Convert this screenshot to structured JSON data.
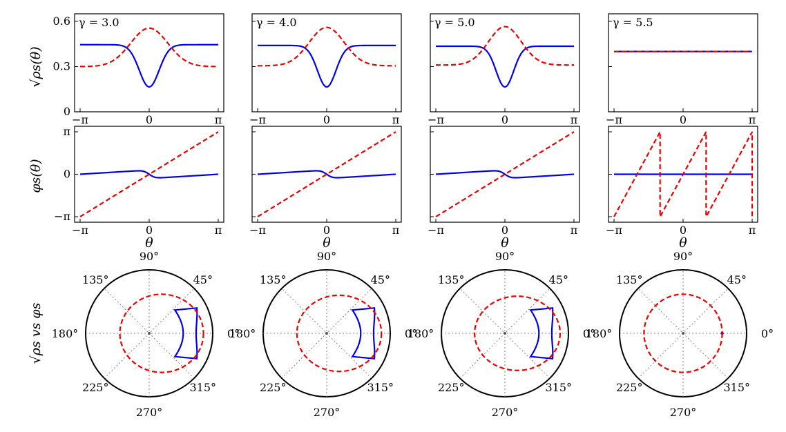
{
  "figure": {
    "row_labels": {
      "amplitude": "√ρs(θ)",
      "phase": "φs(θ)",
      "polar": "√ρs vs φs"
    },
    "x_axis_label": "θ",
    "theta_tick_labels": [
      "−π",
      "0",
      "π"
    ],
    "amplitude_tick_labels": [
      "0",
      "0.3",
      "0.6"
    ],
    "phase_tick_labels": [
      "−π",
      "0",
      "π"
    ],
    "polar_angle_labels": [
      "0°",
      "45°",
      "90°",
      "135°",
      "180°",
      "225°",
      "270°",
      "315°"
    ],
    "colors": {
      "solid": "#0000ee",
      "dashed": "#ee0000",
      "grid": "#808080"
    }
  },
  "chart_data": [
    {
      "type": "line",
      "title": "γ = 3.0",
      "xlabel": "θ",
      "ylabel": "√ρs(θ)",
      "xlim": [
        "-π",
        "π"
      ],
      "ylim": [
        0,
        0.65
      ],
      "series": [
        {
          "name": "solid blue",
          "style": "solid",
          "profile": "dip",
          "baseline": 0.445,
          "extremum": 0.165,
          "width": 0.45
        },
        {
          "name": "dashed red",
          "style": "dashed",
          "profile": "bump",
          "baseline": 0.3,
          "extremum": 0.555,
          "width": 0.85
        }
      ]
    },
    {
      "type": "line",
      "title": "γ = 4.0",
      "xlabel": "θ",
      "ylabel": "√ρs(θ)",
      "xlim": [
        "-π",
        "π"
      ],
      "ylim": [
        0,
        0.65
      ],
      "series": [
        {
          "name": "solid blue",
          "style": "solid",
          "profile": "dip",
          "baseline": 0.44,
          "extremum": 0.165,
          "width": 0.42
        },
        {
          "name": "dashed red",
          "style": "dashed",
          "profile": "bump",
          "baseline": 0.305,
          "extremum": 0.56,
          "width": 0.8
        }
      ]
    },
    {
      "type": "line",
      "title": "γ = 5.0",
      "xlabel": "θ",
      "ylabel": "√ρs(θ)",
      "xlim": [
        "-π",
        "π"
      ],
      "ylim": [
        0,
        0.65
      ],
      "series": [
        {
          "name": "solid blue",
          "style": "solid",
          "profile": "dip",
          "baseline": 0.435,
          "extremum": 0.165,
          "width": 0.4
        },
        {
          "name": "dashed red",
          "style": "dashed",
          "profile": "bump",
          "baseline": 0.31,
          "extremum": 0.565,
          "width": 0.75
        }
      ]
    },
    {
      "type": "line",
      "title": "γ = 5.5",
      "xlabel": "θ",
      "ylabel": "√ρs(θ)",
      "xlim": [
        "-π",
        "π"
      ],
      "ylim": [
        0,
        0.65
      ],
      "series": [
        {
          "name": "solid blue",
          "style": "solid",
          "profile": "flat",
          "baseline": 0.4,
          "extremum": 0.4,
          "width": 1
        },
        {
          "name": "dashed red",
          "style": "dashed",
          "profile": "flat",
          "baseline": 0.4,
          "extremum": 0.4,
          "width": 1
        }
      ]
    },
    {
      "type": "line",
      "title": "",
      "xlabel": "θ",
      "ylabel": "φs(θ)",
      "xlim": [
        "-π",
        "π"
      ],
      "ylim": [
        "-π",
        "π"
      ],
      "series": [
        {
          "name": "solid blue",
          "style": "solid",
          "profile": "kink",
          "peak": 0.28,
          "sharpness": 0.25
        },
        {
          "name": "dashed red",
          "style": "dashed",
          "profile": "linear",
          "slope": 1
        }
      ]
    },
    {
      "type": "line",
      "title": "",
      "xlabel": "θ",
      "ylabel": "φs(θ)",
      "xlim": [
        "-π",
        "π"
      ],
      "ylim": [
        "-π",
        "π"
      ],
      "series": [
        {
          "name": "solid blue",
          "style": "solid",
          "profile": "kink",
          "peak": 0.28,
          "sharpness": 0.25
        },
        {
          "name": "dashed red",
          "style": "dashed",
          "profile": "linear",
          "slope": 1
        }
      ]
    },
    {
      "type": "line",
      "title": "",
      "xlabel": "θ",
      "ylabel": "φs(θ)",
      "xlim": [
        "-π",
        "π"
      ],
      "ylim": [
        "-π",
        "π"
      ],
      "series": [
        {
          "name": "solid blue",
          "style": "solid",
          "profile": "kink",
          "peak": 0.28,
          "sharpness": 0.25
        },
        {
          "name": "dashed red",
          "style": "dashed",
          "profile": "linear",
          "slope": 1
        }
      ]
    },
    {
      "type": "line",
      "title": "",
      "xlabel": "θ",
      "ylabel": "φs(θ)",
      "xlim": [
        "-π",
        "π"
      ],
      "ylim": [
        "-π",
        "π"
      ],
      "series": [
        {
          "name": "solid blue",
          "style": "solid",
          "profile": "zero"
        },
        {
          "name": "dashed red",
          "style": "dashed",
          "profile": "sawtooth",
          "slope": 3
        }
      ]
    },
    {
      "type": "polar",
      "rmax": 0.65,
      "series": [
        {
          "name": "solid blue",
          "style": "solid",
          "shape": "arc",
          "center_angle_deg": 0,
          "r_center": 0.48,
          "arc_halfangle_deg": 28
        },
        {
          "name": "dashed red",
          "style": "dashed",
          "shape": "ellipse",
          "x_range": [
            -0.3,
            0.555
          ],
          "y_halfwidth": 0.4
        }
      ]
    },
    {
      "type": "polar",
      "rmax": 0.65,
      "series": [
        {
          "name": "solid blue",
          "style": "solid",
          "shape": "arc",
          "center_angle_deg": 0,
          "r_center": 0.48,
          "arc_halfangle_deg": 28
        },
        {
          "name": "dashed red",
          "style": "dashed",
          "shape": "ellipse",
          "x_range": [
            -0.305,
            0.56
          ],
          "y_halfwidth": 0.39
        }
      ]
    },
    {
      "type": "polar",
      "rmax": 0.65,
      "series": [
        {
          "name": "solid blue",
          "style": "solid",
          "shape": "arc",
          "center_angle_deg": 0,
          "r_center": 0.48,
          "arc_halfangle_deg": 28
        },
        {
          "name": "dashed red",
          "style": "dashed",
          "shape": "ellipse",
          "x_range": [
            -0.31,
            0.565
          ],
          "y_halfwidth": 0.38
        }
      ]
    },
    {
      "type": "polar",
      "rmax": 0.65,
      "series": [
        {
          "name": "solid blue",
          "style": "solid",
          "shape": "point",
          "center_angle_deg": 0,
          "r_center": 0.4
        },
        {
          "name": "dashed red",
          "style": "dashed",
          "shape": "circle",
          "radius": 0.4
        }
      ]
    }
  ]
}
